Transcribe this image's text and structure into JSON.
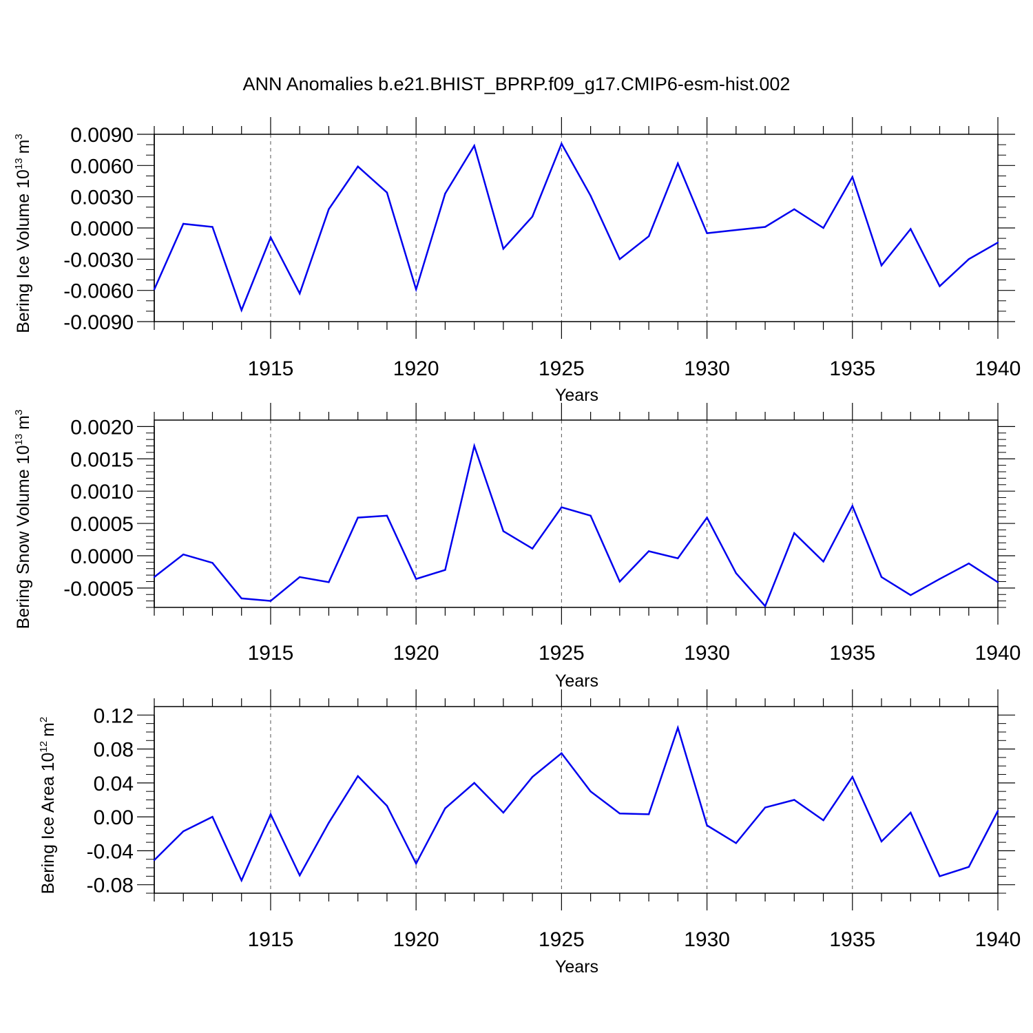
{
  "title": "ANN Anomalies b.e21.BHIST_BPRP.f09_g17.CMIP6-esm-hist.002",
  "colors": {
    "line": "#0000ee",
    "axis": "#000000",
    "grid": "#555555"
  },
  "chart_data": [
    {
      "type": "line",
      "ylabel": {
        "text": "Bering Ice Volume 10",
        "exponent": "13",
        "unit": "m",
        "unit_exponent": "3"
      },
      "xlabel": "Years",
      "xlim": [
        1911,
        1940
      ],
      "ylim": [
        -0.009,
        0.009
      ],
      "ylim_extent": [
        -0.009,
        0.009
      ],
      "yticks": [
        -0.009,
        -0.006,
        -0.003,
        0.0,
        0.003,
        0.006,
        0.009
      ],
      "ytick_labels": [
        "-0.0090",
        "-0.0060",
        "-0.0030",
        "0.0000",
        "0.0030",
        "0.0060",
        "0.0090"
      ],
      "yminor_step": 0.001,
      "xticks": [
        1915,
        1920,
        1925,
        1930,
        1935,
        1940
      ],
      "xtick_labels": [
        "1915",
        "1920",
        "1925",
        "1930",
        "1935",
        "1940"
      ],
      "grid": "vertical dashed at major x ticks",
      "series": [
        {
          "name": "Bering Ice Volume",
          "x": [
            1911,
            1912,
            1913,
            1914,
            1915,
            1916,
            1917,
            1918,
            1919,
            1920,
            1921,
            1922,
            1923,
            1924,
            1925,
            1926,
            1927,
            1928,
            1929,
            1930,
            1931,
            1932,
            1933,
            1934,
            1935,
            1936,
            1937,
            1938,
            1939,
            1940
          ],
          "values": [
            -0.0059,
            0.0004,
            0.0001,
            -0.0079,
            -0.0009,
            -0.0063,
            0.0018,
            0.0059,
            0.0034,
            -0.0059,
            0.0033,
            0.0079,
            -0.002,
            0.0011,
            0.0081,
            0.0031,
            -0.003,
            -0.0008,
            0.0062,
            -0.0005,
            -0.0002,
            0.0001,
            0.0018,
            0.0,
            0.0049,
            -0.0036,
            -0.0001,
            -0.0056,
            -0.003,
            -0.0014
          ]
        }
      ]
    },
    {
      "type": "line",
      "ylabel": {
        "text": "Bering Snow Volume 10",
        "exponent": "13",
        "unit": "m",
        "unit_exponent": "3"
      },
      "xlabel": "Years",
      "xlim": [
        1911,
        1940
      ],
      "ylim": [
        -0.0008,
        0.0021
      ],
      "ylim_extent": [
        -0.0008,
        0.002
      ],
      "yticks": [
        -0.0005,
        0.0,
        0.0005,
        0.001,
        0.0015,
        0.002
      ],
      "ytick_labels": [
        "-0.0005",
        "0.0000",
        "0.0005",
        "0.0010",
        "0.0015",
        "0.0020"
      ],
      "yminor_step": 0.0001,
      "xticks": [
        1915,
        1920,
        1925,
        1930,
        1935,
        1940
      ],
      "xtick_labels": [
        "1915",
        "1920",
        "1925",
        "1930",
        "1935",
        "1940"
      ],
      "grid": "vertical dashed at major x ticks",
      "series": [
        {
          "name": "Bering Snow Volume",
          "x": [
            1911,
            1912,
            1913,
            1914,
            1915,
            1916,
            1917,
            1918,
            1919,
            1920,
            1921,
            1922,
            1923,
            1924,
            1925,
            1926,
            1927,
            1928,
            1929,
            1930,
            1931,
            1932,
            1933,
            1934,
            1935,
            1936,
            1937,
            1938,
            1939,
            1940
          ],
          "values": [
            -0.00033,
            2e-05,
            -0.00011,
            -0.00066,
            -0.0007,
            -0.00033,
            -0.00041,
            0.00059,
            0.00062,
            -0.00036,
            -0.00022,
            0.0017,
            0.00038,
            0.00011,
            0.00075,
            0.00062,
            -0.0004,
            7e-05,
            -4e-05,
            0.00059,
            -0.00027,
            -0.00078,
            0.00035,
            -9e-05,
            0.00077,
            -0.00033,
            -0.00061,
            -0.00036,
            -0.00012,
            -0.00041
          ]
        }
      ]
    },
    {
      "type": "line",
      "ylabel": {
        "text": "Bering Ice Area 10",
        "exponent": "12",
        "unit": "m",
        "unit_exponent": "2"
      },
      "xlabel": "Years",
      "xlim": [
        1911,
        1940
      ],
      "ylim": [
        -0.09,
        0.13
      ],
      "ylim_extent": [
        -0.09,
        0.12
      ],
      "yticks": [
        -0.08,
        -0.04,
        0.0,
        0.04,
        0.08,
        0.12
      ],
      "ytick_labels": [
        "-0.08",
        "-0.04",
        "0.00",
        "0.04",
        "0.08",
        "0.12"
      ],
      "yminor_step": 0.01,
      "xticks": [
        1915,
        1920,
        1925,
        1930,
        1935,
        1940
      ],
      "xtick_labels": [
        "1915",
        "1920",
        "1925",
        "1930",
        "1935",
        "1940"
      ],
      "grid": "vertical dashed at major x ticks",
      "series": [
        {
          "name": "Bering Ice Area",
          "x": [
            1911,
            1912,
            1913,
            1914,
            1915,
            1916,
            1917,
            1918,
            1919,
            1920,
            1921,
            1922,
            1923,
            1924,
            1925,
            1926,
            1927,
            1928,
            1929,
            1930,
            1931,
            1932,
            1933,
            1934,
            1935,
            1936,
            1937,
            1938,
            1939,
            1940
          ],
          "values": [
            -0.051,
            -0.017,
            0.0,
            -0.075,
            0.003,
            -0.069,
            -0.007,
            0.048,
            0.013,
            -0.055,
            0.01,
            0.04,
            0.005,
            0.047,
            0.075,
            0.03,
            0.004,
            0.003,
            0.105,
            -0.01,
            -0.031,
            0.011,
            0.02,
            -0.004,
            0.047,
            -0.029,
            0.005,
            -0.07,
            -0.059,
            0.007
          ]
        }
      ]
    }
  ]
}
